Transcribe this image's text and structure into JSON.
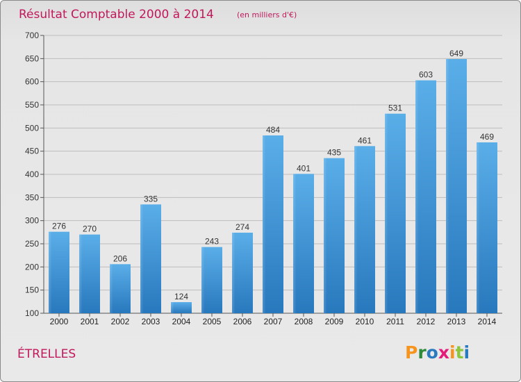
{
  "header": {
    "title": "Résultat Comptable 2000 à 2014",
    "subtitle": "(en milliers d'€)"
  },
  "commune": "ÉTRELLES",
  "logo": {
    "letters": [
      "P",
      "r",
      "o",
      "x",
      "i",
      "t",
      "i"
    ],
    "colors": [
      "#f7941d",
      "#2e8b3a",
      "#2a7ac0",
      "#e31c79",
      "#f7941d",
      "#8cc63f",
      "#2a7ac0"
    ]
  },
  "chart_data": {
    "type": "bar",
    "title": "Résultat Comptable 2000 à 2014",
    "subtitle": "(en milliers d'€)",
    "categories": [
      "2000",
      "2001",
      "2002",
      "2003",
      "2004",
      "2005",
      "2006",
      "2007",
      "2008",
      "2009",
      "2010",
      "2011",
      "2012",
      "2013",
      "2014"
    ],
    "values": [
      276,
      270,
      206,
      335,
      124,
      243,
      274,
      484,
      401,
      435,
      461,
      531,
      603,
      649,
      469
    ],
    "ylim": [
      100,
      700
    ],
    "yticks": [
      100,
      150,
      200,
      250,
      300,
      350,
      400,
      450,
      500,
      550,
      600,
      650,
      700
    ],
    "grid": true,
    "data_labels": true,
    "bar_color": "#3d93d8",
    "grid_color": "#bdbdbd"
  }
}
